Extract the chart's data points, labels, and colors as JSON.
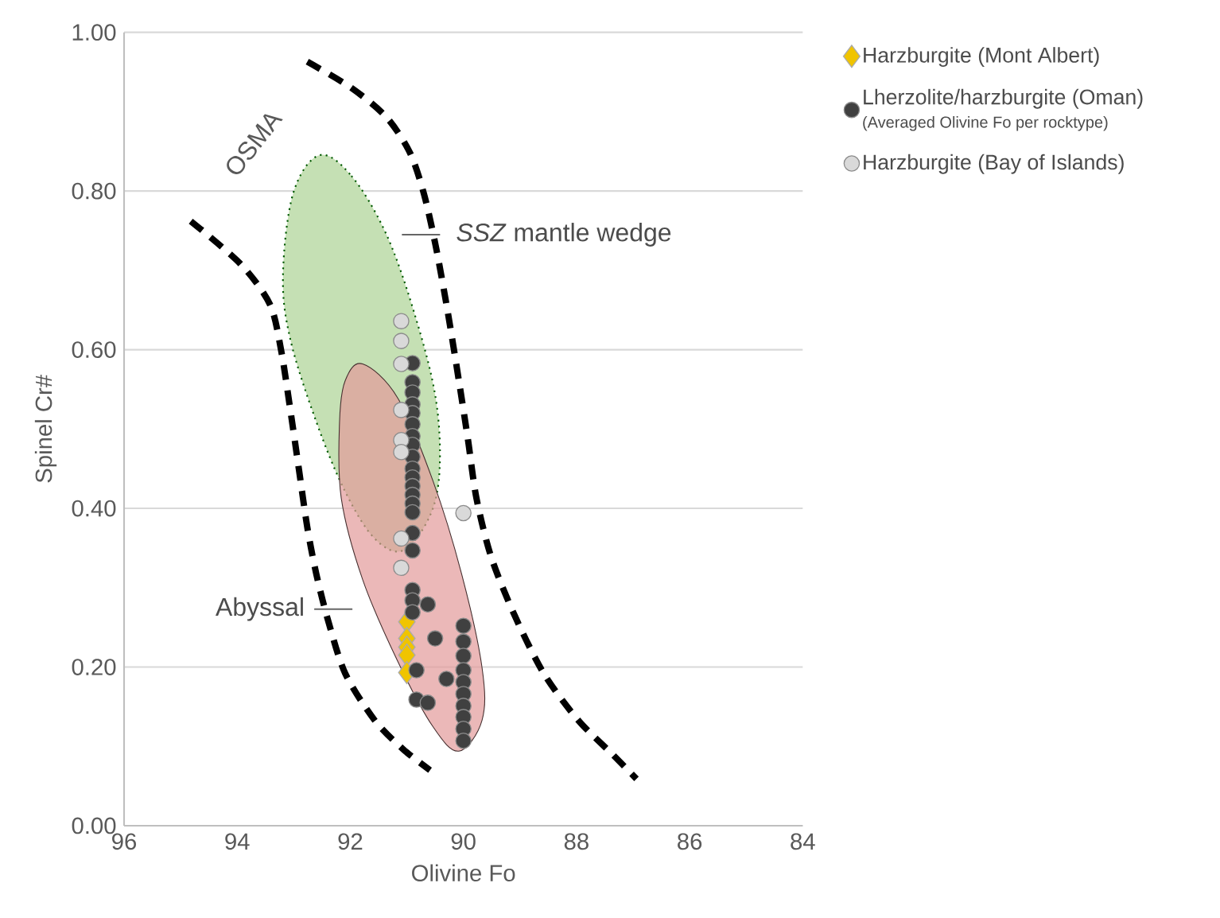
{
  "chart_data": {
    "type": "scatter",
    "xlabel": "Olivine Fo",
    "ylabel": "Spinel Cr#",
    "xlim": [
      96,
      84
    ],
    "ylim": [
      0,
      1
    ],
    "xticks": [
      96,
      94,
      92,
      90,
      88,
      86,
      84
    ],
    "yticks": [
      {
        "value": 0,
        "label": "0.00"
      },
      {
        "value": 0.2,
        "label": "0.20"
      },
      {
        "value": 0.4,
        "label": "0.40"
      },
      {
        "value": 0.6,
        "label": "0.60"
      },
      {
        "value": 0.8,
        "label": "0.80"
      },
      {
        "value": 1,
        "label": "1.00"
      }
    ],
    "grid": "y",
    "legend": "top right",
    "series": [
      {
        "type": "area",
        "color": "#c5e0b4",
        "line_style": "dotted",
        "x": [
          92.55,
          91.98,
          91.36,
          90.85,
          90.49,
          90.42,
          90.59,
          91.06,
          91.57,
          92.09,
          92.6,
          93.06,
          93.19,
          93.01
        ],
        "values": [
          0.845,
          0.819,
          0.745,
          0.642,
          0.539,
          0.45,
          0.391,
          0.347,
          0.362,
          0.421,
          0.509,
          0.613,
          0.694,
          0.797
        ]
      },
      {
        "type": "area",
        "color": "#e39a9a",
        "line_style": "solid",
        "x": [
          91.78,
          91.16,
          90.54,
          90.03,
          89.67,
          89.67,
          90.08,
          90.54,
          91.16,
          91.78,
          92.16,
          92.19,
          92.09
        ],
        "values": [
          0.582,
          0.539,
          0.435,
          0.317,
          0.199,
          0.133,
          0.094,
          0.125,
          0.207,
          0.31,
          0.413,
          0.509,
          0.561
        ]
      },
      {
        "type": "line",
        "color": "#000000",
        "line_style": "dashed",
        "x": [
          94.82,
          93.94,
          93.42,
          93.22,
          93.06,
          92.91,
          92.76,
          92.6,
          92.39,
          92.09,
          91.57,
          91.06,
          90.59
        ],
        "values": [
          0.762,
          0.708,
          0.657,
          0.598,
          0.524,
          0.45,
          0.376,
          0.317,
          0.258,
          0.192,
          0.133,
          0.096,
          0.07
        ]
      },
      {
        "type": "line",
        "color": "#000000",
        "line_style": "dashed",
        "x": [
          92.76,
          91.98,
          91.36,
          90.95,
          90.7,
          90.49,
          90.28,
          90.08,
          89.92,
          89.77,
          89.51,
          89.1,
          88.58,
          87.97,
          87.35,
          86.94
        ],
        "values": [
          0.963,
          0.93,
          0.893,
          0.849,
          0.797,
          0.731,
          0.649,
          0.561,
          0.487,
          0.413,
          0.339,
          0.266,
          0.192,
          0.133,
          0.089,
          0.059
        ]
      },
      {
        "name": "Harzburgite (Mont Albert)",
        "color": "#f0c400",
        "marker": "diamond",
        "x": [
          91.0,
          91.0,
          91.0,
          91.0,
          91.0
        ],
        "values": [
          0.257,
          0.236,
          0.225,
          0.215,
          0.193
        ]
      },
      {
        "name": "Lherzolite/harzburgite (Oman)",
        "color": "#404040",
        "marker": "circle",
        "x": [
          90.9,
          90.9,
          90.9,
          90.9,
          90.9,
          90.9,
          90.9,
          90.9,
          90.9,
          90.9,
          90.9,
          90.9,
          90.9,
          90.9,
          90.9,
          90.9,
          90.9,
          90.9,
          90.9,
          90.9,
          90.63,
          90.5,
          90.3,
          90.83,
          90.63,
          90.83,
          90.0,
          90.0,
          90.0,
          90.0,
          90.0,
          90.0,
          90.0,
          90.0,
          90.0,
          90.0
        ],
        "values": [
          0.583,
          0.559,
          0.546,
          0.531,
          0.52,
          0.506,
          0.491,
          0.48,
          0.465,
          0.45,
          0.439,
          0.428,
          0.417,
          0.406,
          0.395,
          0.369,
          0.347,
          0.297,
          0.284,
          0.269,
          0.279,
          0.236,
          0.185,
          0.159,
          0.155,
          0.196,
          0.252,
          0.232,
          0.214,
          0.196,
          0.181,
          0.166,
          0.151,
          0.137,
          0.122,
          0.107
        ]
      },
      {
        "name": "Harzburgite (Bay of Islands)",
        "color": "#d9d9d9",
        "marker": "circle",
        "x": [
          91.1,
          91.1,
          91.1,
          91.1,
          91.1,
          91.1,
          91.1,
          91.1,
          90.0
        ],
        "values": [
          0.636,
          0.611,
          0.582,
          0.524,
          0.486,
          0.471,
          0.362,
          0.325,
          0.394
        ]
      }
    ],
    "annotations": [
      "OSMA",
      "*SSZ* mantle wedge",
      {
        "text": "Abyssal",
        "x": 92.3,
        "y": 0.273
      },
      "(Averaged Olivine Fo per rocktype)"
    ]
  }
}
